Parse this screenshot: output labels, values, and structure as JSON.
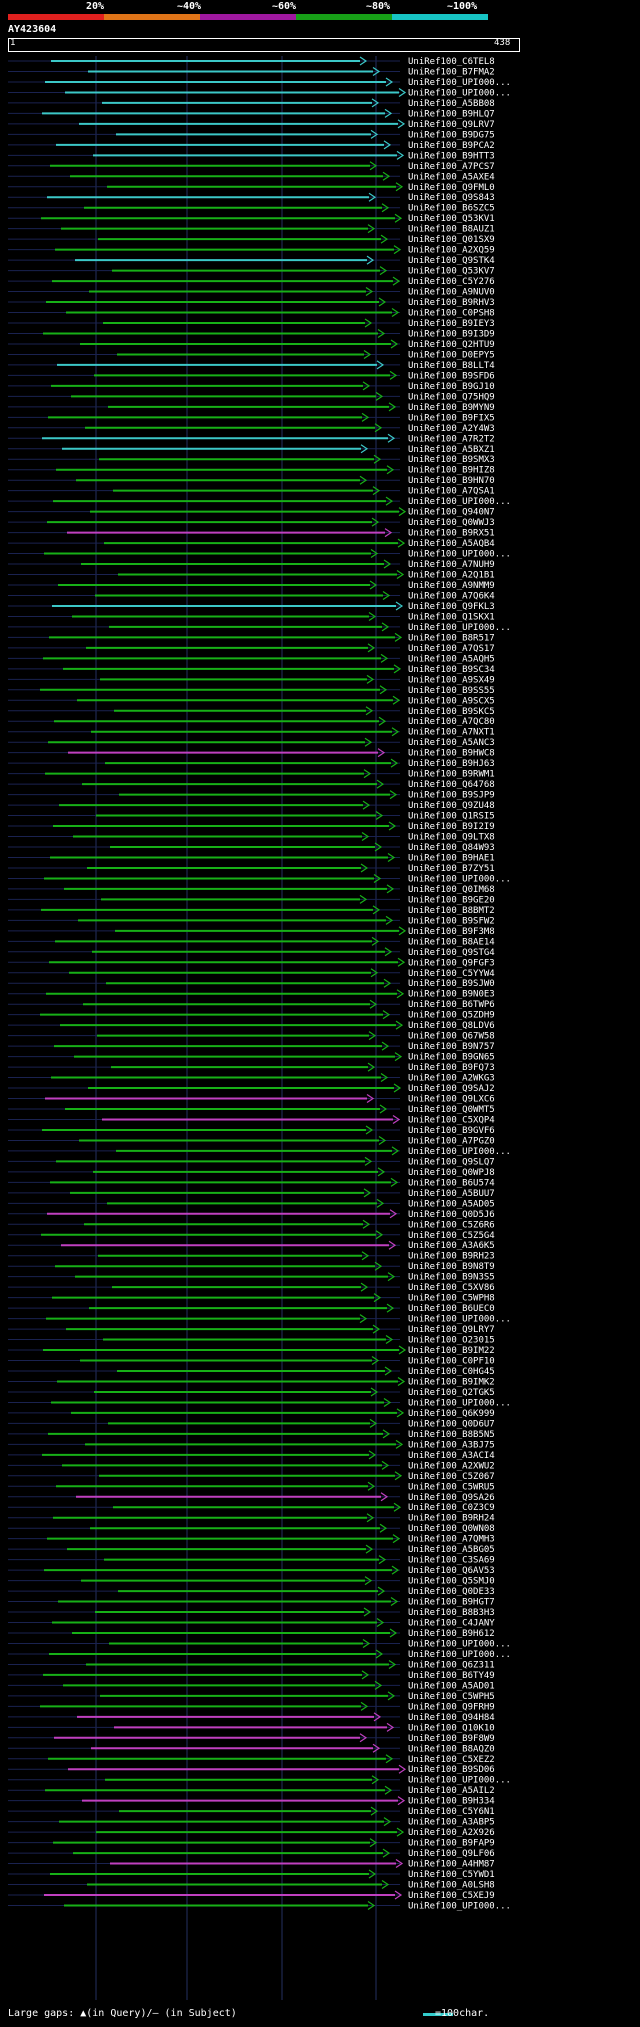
{
  "legend": {
    "labels": [
      "20%",
      "~40%",
      "~60%",
      "~80%",
      "~100%"
    ],
    "colors": [
      "#e0201e",
      "#e07418",
      "#a018a0",
      "#17a017",
      "#17c4c4"
    ]
  },
  "query_id": "AY423604",
  "ruler": {
    "start": "1",
    "end": "438"
  },
  "footer": {
    "gaps_text": "Large gaps: ▲(in Query)/— (in Subject)",
    "scale_text": "=100char."
  },
  "hits": [
    {
      "label": "UniRef100_C6TEL8",
      "c": "cyan"
    },
    {
      "label": "UniRef100_B7FMA2",
      "c": "cyan"
    },
    {
      "label": "UniRef100_UPI000...",
      "c": "cyan"
    },
    {
      "label": "UniRef100_UPI000...",
      "c": "cyan"
    },
    {
      "label": "UniRef100_A5BB08",
      "c": "cyan"
    },
    {
      "label": "UniRef100_B9HLQ7",
      "c": "cyan"
    },
    {
      "label": "UniRef100_Q9LRV7",
      "c": "cyan"
    },
    {
      "label": "UniRef100_B9DG75",
      "c": "cyan"
    },
    {
      "label": "UniRef100_B9PCA2",
      "c": "cyan"
    },
    {
      "label": "UniRef100_B9HTT3",
      "c": "cyan"
    },
    {
      "label": "UniRef100_A7PCS7",
      "c": "green"
    },
    {
      "label": "UniRef100_A5AXE4",
      "c": "green"
    },
    {
      "label": "UniRef100_Q9FML0",
      "c": "green"
    },
    {
      "label": "UniRef100_Q9S843",
      "c": "cyan"
    },
    {
      "label": "UniRef100_B6SZC5",
      "c": "green"
    },
    {
      "label": "UniRef100_Q53KV1",
      "c": "green"
    },
    {
      "label": "UniRef100_B8AUZ1",
      "c": "green"
    },
    {
      "label": "UniRef100_Q01SX9",
      "c": "green"
    },
    {
      "label": "UniRef100_A2XQ59",
      "c": "green"
    },
    {
      "label": "UniRef100_Q9STK4",
      "c": "cyan"
    },
    {
      "label": "UniRef100_Q53KV7",
      "c": "green"
    },
    {
      "label": "UniRef100_C5Y276",
      "c": "green"
    },
    {
      "label": "UniRef100_A9NUV0",
      "c": "green"
    },
    {
      "label": "UniRef100_B9RHV3",
      "c": "green"
    },
    {
      "label": "UniRef100_C0PSH8",
      "c": "green"
    },
    {
      "label": "UniRef100_B9IEY3",
      "c": "green"
    },
    {
      "label": "UniRef100_B9I3D9",
      "c": "green"
    },
    {
      "label": "UniRef100_Q2HTU9",
      "c": "green"
    },
    {
      "label": "UniRef100_D0EPY5",
      "c": "green"
    },
    {
      "label": "UniRef100_B8LLT4",
      "c": "cyan"
    },
    {
      "label": "UniRef100_B9SFD6",
      "c": "green"
    },
    {
      "label": "UniRef100_B9GJ10",
      "c": "green"
    },
    {
      "label": "UniRef100_Q75HQ9",
      "c": "green"
    },
    {
      "label": "UniRef100_B9MYN9",
      "c": "green"
    },
    {
      "label": "UniRef100_B9FIX5",
      "c": "green"
    },
    {
      "label": "UniRef100_A2Y4W3",
      "c": "green"
    },
    {
      "label": "UniRef100_A7R2T2",
      "c": "cyan"
    },
    {
      "label": "UniRef100_A5BXZ1",
      "c": "cyan"
    },
    {
      "label": "UniRef100_B9SMX3",
      "c": "green"
    },
    {
      "label": "UniRef100_B9HIZ8",
      "c": "green"
    },
    {
      "label": "UniRef100_B9HN70",
      "c": "green"
    },
    {
      "label": "UniRef100_A7QSA1",
      "c": "green"
    },
    {
      "label": "UniRef100_UPI000...",
      "c": "green"
    },
    {
      "label": "UniRef100_Q940N7",
      "c": "green"
    },
    {
      "label": "UniRef100_Q0WWJ3",
      "c": "green"
    },
    {
      "label": "UniRef100_B9RX51",
      "c": "magenta"
    },
    {
      "label": "UniRef100_A5AQB4",
      "c": "green"
    },
    {
      "label": "UniRef100_UPI000...",
      "c": "green"
    },
    {
      "label": "UniRef100_A7NUH9",
      "c": "green"
    },
    {
      "label": "UniRef100_A2Q1B1",
      "c": "green"
    },
    {
      "label": "UniRef100_A9NMM9",
      "c": "green"
    },
    {
      "label": "UniRef100_A7Q6K4",
      "c": "green"
    },
    {
      "label": "UniRef100_Q9FKL3",
      "c": "cyan"
    },
    {
      "label": "UniRef100_Q1SKX1",
      "c": "green"
    },
    {
      "label": "UniRef100_UPI000...",
      "c": "green"
    },
    {
      "label": "UniRef100_B8R517",
      "c": "green"
    },
    {
      "label": "UniRef100_A7QS17",
      "c": "green"
    },
    {
      "label": "UniRef100_A5AQH5",
      "c": "green"
    },
    {
      "label": "UniRef100_B9SC34",
      "c": "green"
    },
    {
      "label": "UniRef100_A9SX49",
      "c": "green"
    },
    {
      "label": "UniRef100_B9SS55",
      "c": "green"
    },
    {
      "label": "UniRef100_A9SCX5",
      "c": "green"
    },
    {
      "label": "UniRef100_B9SKC5",
      "c": "green"
    },
    {
      "label": "UniRef100_A7QC80",
      "c": "green"
    },
    {
      "label": "UniRef100_A7NXT1",
      "c": "green"
    },
    {
      "label": "UniRef100_A5ANC3",
      "c": "green"
    },
    {
      "label": "UniRef100_B9HWC8",
      "c": "magenta"
    },
    {
      "label": "UniRef100_B9HJ63",
      "c": "green"
    },
    {
      "label": "UniRef100_B9RWM1",
      "c": "green"
    },
    {
      "label": "UniRef100_Q64768",
      "c": "green"
    },
    {
      "label": "UniRef100_B9SJP9",
      "c": "green"
    },
    {
      "label": "UniRef100_Q9ZU48",
      "c": "green"
    },
    {
      "label": "UniRef100_Q1RSI5",
      "c": "green"
    },
    {
      "label": "UniRef100_B9I2I9",
      "c": "green"
    },
    {
      "label": "UniRef100_Q9LTX8",
      "c": "green"
    },
    {
      "label": "UniRef100_Q84W93",
      "c": "green"
    },
    {
      "label": "UniRef100_B9HAE1",
      "c": "green"
    },
    {
      "label": "UniRef100_B7ZY51",
      "c": "green"
    },
    {
      "label": "UniRef100_UPI000...",
      "c": "green"
    },
    {
      "label": "UniRef100_Q0IM68",
      "c": "green"
    },
    {
      "label": "UniRef100_B9GE20",
      "c": "green"
    },
    {
      "label": "UniRef100_B8BMT2",
      "c": "green"
    },
    {
      "label": "UniRef100_B9SFW2",
      "c": "green"
    },
    {
      "label": "UniRef100_B9F3M8",
      "c": "green"
    },
    {
      "label": "UniRef100_B8AE14",
      "c": "green"
    },
    {
      "label": "UniRef100_Q9STG4",
      "c": "green"
    },
    {
      "label": "UniRef100_Q9FGF3",
      "c": "green"
    },
    {
      "label": "UniRef100_C5YYW4",
      "c": "green"
    },
    {
      "label": "UniRef100_B9SJW0",
      "c": "green"
    },
    {
      "label": "UniRef100_B9N0E3",
      "c": "green"
    },
    {
      "label": "UniRef100_B6TWP6",
      "c": "green"
    },
    {
      "label": "UniRef100_Q5ZDH9",
      "c": "green"
    },
    {
      "label": "UniRef100_Q8LDV6",
      "c": "green"
    },
    {
      "label": "UniRef100_Q67W58",
      "c": "green"
    },
    {
      "label": "UniRef100_B9N757",
      "c": "green"
    },
    {
      "label": "UniRef100_B9GN65",
      "c": "green"
    },
    {
      "label": "UniRef100_B9FQ73",
      "c": "green"
    },
    {
      "label": "UniRef100_A2WKG3",
      "c": "green"
    },
    {
      "label": "UniRef100_Q9SAJ2",
      "c": "green"
    },
    {
      "label": "UniRef100_Q9LXC6",
      "c": "magenta"
    },
    {
      "label": "UniRef100_Q0WMT5",
      "c": "green"
    },
    {
      "label": "UniRef100_C5XQP4",
      "c": "magenta"
    },
    {
      "label": "UniRef100_B9GVF6",
      "c": "green"
    },
    {
      "label": "UniRef100_A7PGZ0",
      "c": "green"
    },
    {
      "label": "UniRef100_UPI000...",
      "c": "green"
    },
    {
      "label": "UniRef100_Q9SLQ7",
      "c": "green"
    },
    {
      "label": "UniRef100_Q0WPJ8",
      "c": "green"
    },
    {
      "label": "UniRef100_B6U574",
      "c": "green"
    },
    {
      "label": "UniRef100_A5BUU7",
      "c": "green"
    },
    {
      "label": "UniRef100_A5AD05",
      "c": "green"
    },
    {
      "label": "UniRef100_Q0D5J6",
      "c": "magenta"
    },
    {
      "label": "UniRef100_C5Z6R6",
      "c": "green"
    },
    {
      "label": "UniRef100_C5Z5G4",
      "c": "green"
    },
    {
      "label": "UniRef100_A3A6K5",
      "c": "magenta"
    },
    {
      "label": "UniRef100_B9RH23",
      "c": "green"
    },
    {
      "label": "UniRef100_B9N8T9",
      "c": "green"
    },
    {
      "label": "UniRef100_B9N3S5",
      "c": "green"
    },
    {
      "label": "UniRef100_C5XV86",
      "c": "green"
    },
    {
      "label": "UniRef100_C5WPH8",
      "c": "green"
    },
    {
      "label": "UniRef100_B6UEC0",
      "c": "green"
    },
    {
      "label": "UniRef100_UPI000...",
      "c": "green"
    },
    {
      "label": "UniRef100_Q9LRY7",
      "c": "green"
    },
    {
      "label": "UniRef100_O23015",
      "c": "green"
    },
    {
      "label": "UniRef100_B9IM22",
      "c": "green"
    },
    {
      "label": "UniRef100_C0PF10",
      "c": "green"
    },
    {
      "label": "UniRef100_C0HG45",
      "c": "green"
    },
    {
      "label": "UniRef100_B9IMK2",
      "c": "green"
    },
    {
      "label": "UniRef100_Q2TGK5",
      "c": "green"
    },
    {
      "label": "UniRef100_UPI000...",
      "c": "green"
    },
    {
      "label": "UniRef100_Q6K999",
      "c": "green"
    },
    {
      "label": "UniRef100_Q0D6U7",
      "c": "green"
    },
    {
      "label": "UniRef100_B8B5N5",
      "c": "green"
    },
    {
      "label": "UniRef100_A3BJ75",
      "c": "green"
    },
    {
      "label": "UniRef100_A3ACI4",
      "c": "green"
    },
    {
      "label": "UniRef100_A2XWU2",
      "c": "green"
    },
    {
      "label": "UniRef100_C5Z067",
      "c": "green"
    },
    {
      "label": "UniRef100_C5WRU5",
      "c": "green"
    },
    {
      "label": "UniRef100_Q9SA26",
      "c": "magenta"
    },
    {
      "label": "UniRef100_C0Z3C9",
      "c": "green"
    },
    {
      "label": "UniRef100_B9RH24",
      "c": "green"
    },
    {
      "label": "UniRef100_Q0WN08",
      "c": "green"
    },
    {
      "label": "UniRef100_A7QMH3",
      "c": "green"
    },
    {
      "label": "UniRef100_A5BG05",
      "c": "green"
    },
    {
      "label": "UniRef100_C3SA69",
      "c": "green"
    },
    {
      "label": "UniRef100_Q6AV53",
      "c": "green"
    },
    {
      "label": "UniRef100_Q5SMJ0",
      "c": "green"
    },
    {
      "label": "UniRef100_Q0DE33",
      "c": "green"
    },
    {
      "label": "UniRef100_B9HGT7",
      "c": "green"
    },
    {
      "label": "UniRef100_B8B3H3",
      "c": "green"
    },
    {
      "label": "UniRef100_C4JANY",
      "c": "green"
    },
    {
      "label": "UniRef100_B9H612",
      "c": "green"
    },
    {
      "label": "UniRef100_UPI000...",
      "c": "green"
    },
    {
      "label": "UniRef100_UPI000...",
      "c": "green"
    },
    {
      "label": "UniRef100_Q6Z311",
      "c": "green"
    },
    {
      "label": "UniRef100_B6TY49",
      "c": "green"
    },
    {
      "label": "UniRef100_A5AD01",
      "c": "green"
    },
    {
      "label": "UniRef100_C5WPH5",
      "c": "green"
    },
    {
      "label": "UniRef100_Q9FRH9",
      "c": "green"
    },
    {
      "label": "UniRef100_Q94H84",
      "c": "magenta"
    },
    {
      "label": "UniRef100_Q10K10",
      "c": "magenta"
    },
    {
      "label": "UniRef100_B9F8W9",
      "c": "magenta"
    },
    {
      "label": "UniRef100_B8AQZ0",
      "c": "magenta"
    },
    {
      "label": "UniRef100_C5XEZ2",
      "c": "green"
    },
    {
      "label": "UniRef100_B9SD06",
      "c": "magenta"
    },
    {
      "label": "UniRef100_UPI000...",
      "c": "green"
    },
    {
      "label": "UniRef100_A5AIL2",
      "c": "green"
    },
    {
      "label": "UniRef100_B9H334",
      "c": "magenta"
    },
    {
      "label": "UniRef100_C5Y6N1",
      "c": "green"
    },
    {
      "label": "UniRef100_A3ABP5",
      "c": "green"
    },
    {
      "label": "UniRef100_A2X926",
      "c": "green"
    },
    {
      "label": "UniRef100_B9FAP9",
      "c": "green"
    },
    {
      "label": "UniRef100_Q9LF06",
      "c": "green"
    },
    {
      "label": "UniRef100_A4HM87",
      "c": "magenta"
    },
    {
      "label": "UniRef100_C5YWD1",
      "c": "green"
    },
    {
      "label": "UniRef100_A0LSH8",
      "c": "green"
    },
    {
      "label": "UniRef100_C5XEJ9",
      "c": "magenta"
    },
    {
      "label": "UniRef100_UPI000...",
      "c": "green"
    }
  ]
}
